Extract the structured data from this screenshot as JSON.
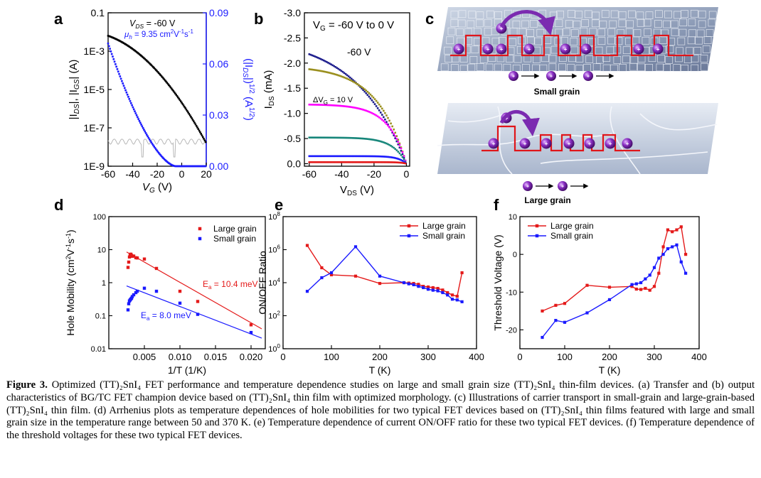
{
  "panel_letters": [
    "a",
    "b",
    "c",
    "d",
    "e",
    "f"
  ],
  "colors": {
    "black": "#000000",
    "blue": "#1a1aff",
    "red": "#e41a1a",
    "olive": "#9a8f1e",
    "magenta": "#ff00ff",
    "teal": "#17867a",
    "gray": "#b0b0b0"
  },
  "panel_a": {
    "annotation_vds": "V",
    "annotation_vds_sub": "DS",
    "annotation_vds_value": " = -60 V",
    "annotation_mu": "μ",
    "annotation_mu_sub": "h",
    "annotation_mu_value": " = 9.35 cm",
    "annotation_mu_units": "V",
    "annotation_mu_units2": "s",
    "ylabel_left": "|I",
    "ylabel_left_2": "|, |I",
    "ylabel_left_3": "| (A)",
    "ylabel_left_sub1": "DS",
    "ylabel_left_sub2": "GS",
    "ylabel_right": "(|I",
    "ylabel_right_sub": "DS",
    "ylabel_right_2": "|)",
    "ylabel_right_sup": "1/2",
    "ylabel_right_3": " (A",
    "ylabel_right_sup2": "1/2",
    "ylabel_right_4": ")",
    "xlabel": "V",
    "xlabel_sub": "G",
    "xlabel_unit": " (V)",
    "yticks_left": [
      "0.1",
      "1E-3",
      "1E-5",
      "1E-7",
      "1E-9"
    ],
    "yticks_right": [
      "0.09",
      "0.06",
      "0.03",
      "0.00"
    ],
    "xticks": [
      "-60",
      "-40",
      "-20",
      "0",
      "20"
    ]
  },
  "panel_b": {
    "annotation_vg": "V",
    "annotation_vg_sub": "G",
    "annotation_vg_value": " = -60 V to 0 V",
    "annotation_60": "-60 V",
    "annotation_dvg": "ΔV",
    "annotation_dvg_sub": "G",
    "annotation_dvg_value": " = 10 V",
    "ylabel": "I",
    "ylabel_sub": "DS",
    "ylabel_unit": " (mA)",
    "xlabel": "V",
    "xlabel_sub": "DS",
    "xlabel_unit": " (V)",
    "yticks": [
      "-3.0",
      "-2.5",
      "-2.0",
      "-1.5",
      "-1.0",
      "-0.5",
      "0.0"
    ],
    "xticks": [
      "-60",
      "-40",
      "-20",
      "0"
    ]
  },
  "panel_c": {
    "small_label": "Small grain",
    "large_label": "Large grain"
  },
  "chart_data": [
    {
      "panel": "d",
      "type": "scatter",
      "xlabel": "1/T (1/K)",
      "ylabel": "Hole Mobility (cm²V⁻¹s⁻¹)",
      "ylabel_parts": [
        "Hole Mobility (cm",
        "2",
        "V",
        "-1",
        "s",
        "-1",
        ")"
      ],
      "log_y": true,
      "xlim": [
        0.0,
        0.022
      ],
      "ylim": [
        0.01,
        100
      ],
      "xticks": [
        "0.005",
        "0.010",
        "0.015",
        "0.020"
      ],
      "yticks": [
        "100",
        "10",
        "1",
        "0.1",
        "0.01"
      ],
      "legend": [
        "Large grain",
        "Small grain"
      ],
      "legend_position": "top-right",
      "annotations": [
        {
          "main": "E",
          "sub": "a",
          "rest": " = 10.4 meV"
        },
        {
          "main": "E",
          "sub": "a",
          "rest": " = 8.0 meV"
        }
      ],
      "series": [
        {
          "name": "Large grain",
          "x": [
            0.0027,
            0.0028,
            0.0029,
            0.003,
            0.0031,
            0.0032,
            0.0033,
            0.0035,
            0.0038,
            0.004,
            0.005,
            0.0067,
            0.01,
            0.0125,
            0.02
          ],
          "y": [
            2.9,
            4.2,
            6.0,
            7.0,
            7.3,
            6.7,
            6.3,
            6.4,
            5.7,
            5.6,
            5.2,
            2.7,
            0.55,
            0.27,
            0.053
          ]
        },
        {
          "name": "Small grain",
          "x": [
            0.0027,
            0.0028,
            0.0029,
            0.003,
            0.0031,
            0.0032,
            0.0033,
            0.0035,
            0.0038,
            0.004,
            0.005,
            0.0067,
            0.01,
            0.0125,
            0.02
          ],
          "y": [
            0.15,
            0.23,
            0.28,
            0.3,
            0.32,
            0.34,
            0.38,
            0.43,
            0.5,
            0.55,
            0.68,
            0.55,
            0.24,
            0.11,
            0.031
          ]
        }
      ],
      "fits": [
        {
          "name": "Large grain",
          "x": [
            0.0025,
            0.0215
          ],
          "y": [
            8.5,
            0.04
          ]
        },
        {
          "name": "Small grain",
          "x": [
            0.0025,
            0.0215
          ],
          "y": [
            0.8,
            0.021
          ]
        }
      ]
    },
    {
      "panel": "e",
      "type": "line",
      "xlabel": "T (K)",
      "ylabel": "ON/OFF Ratio",
      "log_y": true,
      "xlim": [
        0,
        400
      ],
      "ylim": [
        1,
        100000000
      ],
      "xticks": [
        "0",
        "100",
        "200",
        "300",
        "400"
      ],
      "yticks": [
        {
          "b": "10",
          "e": "8"
        },
        {
          "b": "10",
          "e": "6"
        },
        {
          "b": "10",
          "e": "4"
        },
        {
          "b": "10",
          "e": "2"
        },
        {
          "b": "10",
          "e": "0"
        }
      ],
      "legend": [
        "Large grain",
        "Small grain"
      ],
      "legend_position": "top-right",
      "series": [
        {
          "name": "Large grain",
          "x": [
            50,
            80,
            100,
            150,
            200,
            250,
            260,
            270,
            280,
            290,
            300,
            310,
            320,
            330,
            340,
            350,
            360,
            370
          ],
          "y": [
            1800000,
            80000,
            30000,
            25000,
            9000,
            10000,
            9500,
            9000,
            8000,
            6000,
            5500,
            5000,
            4500,
            3600,
            2500,
            1800,
            1500,
            40000
          ]
        },
        {
          "name": "Small grain",
          "x": [
            50,
            80,
            100,
            150,
            200,
            250,
            260,
            270,
            280,
            290,
            300,
            310,
            320,
            330,
            340,
            350,
            360,
            370
          ],
          "y": [
            3000,
            20000,
            40000,
            1500000,
            25000,
            10000,
            8500,
            7500,
            6000,
            5000,
            4000,
            3500,
            3200,
            2500,
            1800,
            1000,
            900,
            700
          ]
        }
      ]
    },
    {
      "panel": "f",
      "type": "line",
      "xlabel": "T (K)",
      "ylabel": "Threshold Voltage (V)",
      "xlim": [
        0,
        400
      ],
      "ylim": [
        -25,
        10
      ],
      "xticks": [
        "0",
        "100",
        "200",
        "300",
        "400"
      ],
      "yticks": [
        "10",
        "0",
        "-10",
        "-20"
      ],
      "legend": [
        "Large grain",
        "Small grain"
      ],
      "legend_position": "top-left",
      "series": [
        {
          "name": "Large grain",
          "x": [
            50,
            80,
            100,
            150,
            200,
            250,
            260,
            270,
            280,
            290,
            300,
            310,
            320,
            330,
            340,
            350,
            360,
            370
          ],
          "y": [
            -15,
            -13.5,
            -13,
            -8.2,
            -8.7,
            -8.5,
            -9.2,
            -9.3,
            -9.0,
            -9.5,
            -8.5,
            -5,
            2,
            6.5,
            6.0,
            6.5,
            7.3,
            0
          ]
        },
        {
          "name": "Small grain",
          "x": [
            50,
            80,
            100,
            150,
            200,
            250,
            260,
            270,
            280,
            290,
            300,
            310,
            320,
            330,
            340,
            350,
            360,
            370
          ],
          "y": [
            -22,
            -17.5,
            -18,
            -15.5,
            -12,
            -8,
            -7.8,
            -7.5,
            -6.5,
            -5.5,
            -3.5,
            -1,
            0,
            1.5,
            2,
            2.5,
            -2,
            -5
          ]
        }
      ]
    }
  ],
  "caption": {
    "label": "Figure 3.",
    "text": " Optimized (TT)₂SnI₄ FET performance and temperature dependence studies on large and small grain size (TT)₂SnI₄ thin-film devices. (a) Transfer and (b) output characteristics of BG/TC FET champion device based on (TT)₂SnI₄ thin film with optimized morphology. (c) Illustrations of carrier transport in small-grain and large-grain-based (TT)₂SnI₄ thin film. (d) Arrhenius plots as temperature dependences of hole mobilities for two typical FET devices based on (TT)₂SnI₄ thin films featured with large and small grain size in the temperature range between 50 and 370 K. (e) Temperature dependence of current ON/OFF ratio for these two typical FET devices. (f) Temperature dependence of the threshold voltages for these two typical FET devices."
  }
}
